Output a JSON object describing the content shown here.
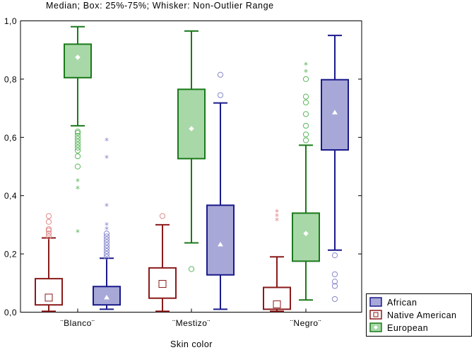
{
  "chart_data": {
    "type": "box",
    "title": "Median; Box: 25%-75%; Whisker: Non-Outlier Range",
    "xlabel": "Skin color",
    "ylabel": "",
    "ylim": [
      0,
      1
    ],
    "yticks": [
      "0,0",
      "0,2",
      "0,4",
      "0,6",
      "0,8",
      "1,0"
    ],
    "categories": [
      "¨Blanco¨",
      "¨Mestizo¨",
      "¨Negro¨"
    ],
    "legend_position": "bottom-right",
    "series": [
      {
        "name": "Native American",
        "color": "#8b1a1a",
        "fill": "#ffffff",
        "marker": "square",
        "boxes": [
          {
            "min": 0.003,
            "q1": 0.025,
            "median": 0.05,
            "q3": 0.115,
            "max": 0.255,
            "outliers": [
              0.26,
              0.27,
              0.28,
              0.285,
              0.31,
              0.33
            ],
            "extremes": []
          },
          {
            "min": 0.003,
            "q1": 0.048,
            "median": 0.097,
            "q3": 0.152,
            "max": 0.3,
            "outliers": [
              0.33
            ],
            "extremes": []
          },
          {
            "min": 0.003,
            "q1": 0.01,
            "median": 0.027,
            "q3": 0.085,
            "max": 0.19,
            "outliers": [],
            "extremes": [
              0.315,
              0.33,
              0.345
            ]
          }
        ]
      },
      {
        "name": "European",
        "color": "#1a7a1a",
        "fill": "#a8d8a8",
        "marker": "diamond",
        "boxes": [
          {
            "min": 0.64,
            "q1": 0.805,
            "median": 0.875,
            "q3": 0.92,
            "max": 0.98,
            "outliers": [
              0.5,
              0.535,
              0.555,
              0.565,
              0.575,
              0.585,
              0.595,
              0.605,
              0.615,
              0.62
            ],
            "extremes": [
              0.275,
              0.425,
              0.45
            ]
          },
          {
            "min": 0.238,
            "q1": 0.527,
            "median": 0.63,
            "q3": 0.765,
            "max": 0.965,
            "outliers": [
              0.148
            ],
            "extremes": []
          },
          {
            "min": 0.042,
            "q1": 0.175,
            "median": 0.27,
            "q3": 0.34,
            "max": 0.573,
            "outliers": [
              0.59,
              0.61,
              0.64,
              0.68,
              0.72,
              0.74,
              0.8
            ],
            "extremes": [
              0.825,
              0.85
            ]
          }
        ]
      },
      {
        "name": "African",
        "color": "#1a1a8b",
        "fill": "#a8a8d8",
        "marker": "triangle",
        "boxes": [
          {
            "min": 0.01,
            "q1": 0.025,
            "median": 0.05,
            "q3": 0.088,
            "max": 0.185,
            "outliers": [
              0.19,
              0.2,
              0.21,
              0.22,
              0.23,
              0.24,
              0.25,
              0.26,
              0.27
            ],
            "extremes": [
              0.285,
              0.3,
              0.365,
              0.53,
              0.59
            ]
          },
          {
            "min": 0.01,
            "q1": 0.128,
            "median": 0.232,
            "q3": 0.367,
            "max": 0.718,
            "outliers": [
              0.745,
              0.815
            ],
            "extremes": []
          },
          {
            "min": 0.213,
            "q1": 0.557,
            "median": 0.685,
            "q3": 0.798,
            "max": 0.95,
            "outliers": [
              0.045,
              0.09,
              0.105,
              0.13,
              0.195
            ],
            "extremes": []
          }
        ]
      }
    ],
    "legend": [
      "African",
      "Native American",
      "European"
    ]
  }
}
